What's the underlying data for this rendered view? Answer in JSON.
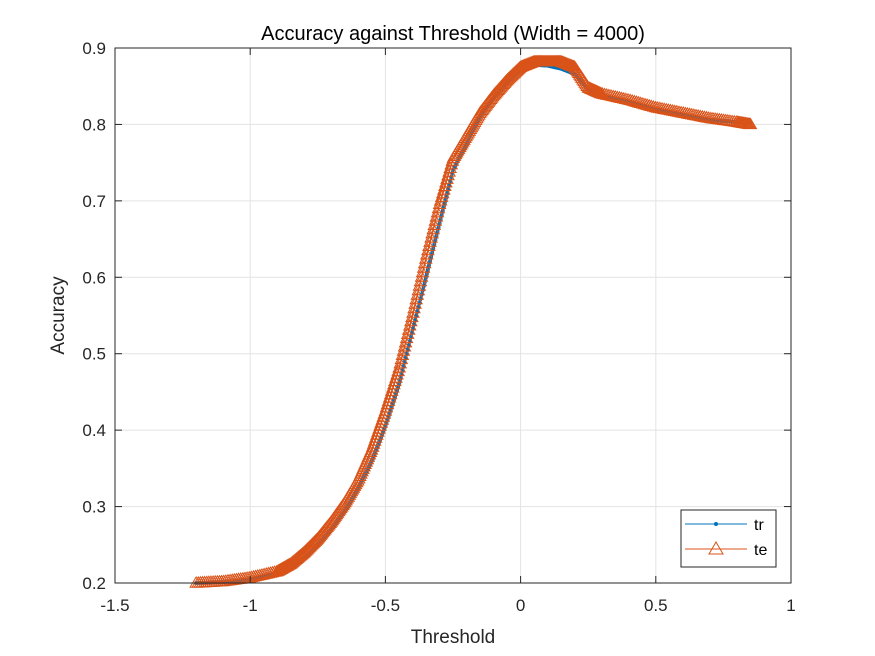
{
  "chart_data": {
    "type": "line",
    "title": "Accuracy against Threshold (Width = 4000)",
    "xlabel": "Threshold",
    "ylabel": "Accuracy",
    "xlim": [
      -1.5,
      1
    ],
    "ylim": [
      0.2,
      0.9
    ],
    "xticks": [
      -1.5,
      -1,
      -0.5,
      0,
      0.5,
      1
    ],
    "xtick_labels": [
      "-1.5",
      "-1",
      "-0.5",
      "0",
      "0.5",
      "1"
    ],
    "yticks": [
      0.2,
      0.3,
      0.4,
      0.5,
      0.6,
      0.7,
      0.8,
      0.9
    ],
    "ytick_labels": [
      "0.2",
      "0.3",
      "0.4",
      "0.5",
      "0.6",
      "0.7",
      "0.8",
      "0.9"
    ],
    "grid": true,
    "legend_position": "bottom-right",
    "series": [
      {
        "name": "tr",
        "color": "#0072BD",
        "marker": "point",
        "x": [
          -1.2,
          -1.1,
          -1.0,
          -0.9,
          -0.85,
          -0.8,
          -0.75,
          -0.7,
          -0.65,
          -0.6,
          -0.55,
          -0.5,
          -0.45,
          -0.4,
          -0.35,
          -0.3,
          -0.25,
          -0.2,
          -0.15,
          -0.1,
          -0.05,
          0.0,
          0.05,
          0.1,
          0.15,
          0.2,
          0.25,
          0.3,
          0.4,
          0.5,
          0.6,
          0.7,
          0.8,
          0.85
        ],
        "y": [
          0.2,
          0.201,
          0.205,
          0.212,
          0.22,
          0.232,
          0.25,
          0.27,
          0.295,
          0.325,
          0.36,
          0.405,
          0.46,
          0.53,
          0.6,
          0.67,
          0.74,
          0.775,
          0.81,
          0.835,
          0.855,
          0.872,
          0.878,
          0.877,
          0.873,
          0.866,
          0.846,
          0.838,
          0.83,
          0.82,
          0.812,
          0.806,
          0.803,
          0.802
        ]
      },
      {
        "name": "te",
        "color": "#D95319",
        "marker": "triangle",
        "x": [
          -1.2,
          -1.1,
          -1.0,
          -0.9,
          -0.85,
          -0.8,
          -0.75,
          -0.7,
          -0.65,
          -0.6,
          -0.55,
          -0.5,
          -0.45,
          -0.4,
          -0.35,
          -0.3,
          -0.25,
          -0.2,
          -0.15,
          -0.1,
          -0.05,
          0.0,
          0.05,
          0.1,
          0.15,
          0.2,
          0.25,
          0.3,
          0.4,
          0.5,
          0.6,
          0.7,
          0.8,
          0.85
        ],
        "y": [
          0.2,
          0.202,
          0.207,
          0.215,
          0.225,
          0.24,
          0.258,
          0.28,
          0.305,
          0.335,
          0.375,
          0.425,
          0.48,
          0.55,
          0.625,
          0.695,
          0.755,
          0.785,
          0.815,
          0.838,
          0.858,
          0.875,
          0.882,
          0.882,
          0.882,
          0.875,
          0.848,
          0.84,
          0.832,
          0.822,
          0.815,
          0.808,
          0.803,
          0.8
        ]
      }
    ]
  }
}
